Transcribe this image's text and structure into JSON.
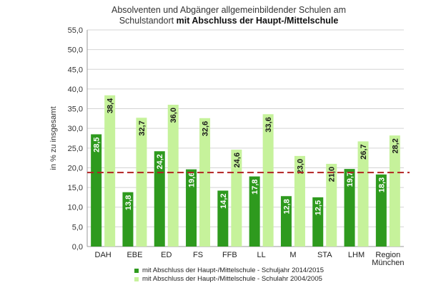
{
  "chart_data": {
    "type": "bar",
    "title_line1": "Absolventen  und Abgänger allgemeinbildender Schulen  am",
    "title_line2_plain": "Schulstandort",
    "title_line2_bold": "mit Abschluss der Haupt-/Mittelschule",
    "ylabel": "in % zu insgesamt",
    "ylim": [
      0,
      55
    ],
    "yticks": [
      "0,0",
      "5,0",
      "10,0",
      "15,0",
      "20,0",
      "25,0",
      "30,0",
      "35,0",
      "40,0",
      "45,0",
      "50,0",
      "55,0"
    ],
    "categories": [
      "DAH",
      "EBE",
      "ED",
      "FS",
      "FFB",
      "LL",
      "M",
      "STA",
      "LHM",
      "Region München"
    ],
    "series": [
      {
        "name": "mit Abschluss der Haupt-/Mittelschule - Schuljahr 2014/2015",
        "color": "#2e9a1e",
        "values": [
          28.5,
          13.8,
          24.2,
          19.6,
          14.2,
          17.8,
          12.8,
          12.5,
          19.7,
          18.3
        ],
        "labels": [
          "28,5",
          "13,8",
          "24,2",
          "19,6",
          "14,2",
          "17,8",
          "12,8",
          "12,5",
          "19,7",
          "18,3"
        ]
      },
      {
        "name": "mit Abschluss der Haupt-/Mittelschule - Schulahr 2004/2005",
        "color": "#c6f29b",
        "values": [
          38.4,
          32.7,
          36.0,
          32.6,
          24.6,
          33.6,
          23.0,
          21.0,
          26.7,
          28.2
        ],
        "labels": [
          "38,4",
          "32,7",
          "36,0",
          "32,6",
          "24,6",
          "33,6",
          "23,0",
          "21,0",
          "26,7",
          "28,2"
        ]
      }
    ],
    "reference_line": {
      "value": 18.8,
      "color": "#b22222"
    },
    "grid": true,
    "legend_position": "bottom"
  }
}
